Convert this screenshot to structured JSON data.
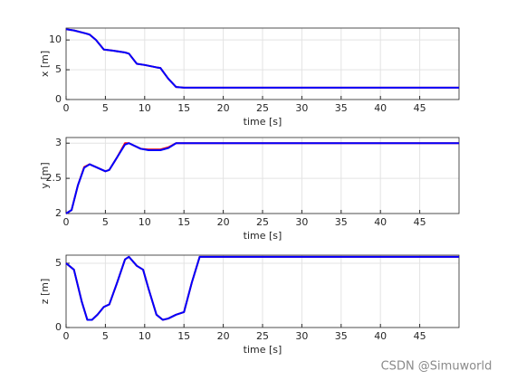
{
  "chart_data": [
    {
      "type": "line",
      "xlabel": "time [s]",
      "ylabel": "x [m]",
      "x": [
        0,
        1,
        2.5,
        3,
        3.8,
        4.8,
        6,
        7.5,
        8,
        9,
        10,
        11.5,
        12,
        13,
        14,
        15,
        50
      ],
      "series": [
        {
          "color": "#ff0000",
          "values": [
            11.8,
            11.6,
            11.1,
            10.9,
            10.0,
            8.4,
            8.2,
            7.9,
            7.7,
            6.0,
            5.8,
            5.4,
            5.3,
            3.5,
            2.1,
            2.0,
            2.0
          ]
        },
        {
          "color": "#0000ff",
          "values": [
            11.8,
            11.6,
            11.1,
            10.9,
            10.0,
            8.4,
            8.2,
            7.9,
            7.7,
            6.0,
            5.8,
            5.4,
            5.3,
            3.5,
            2.1,
            2.0,
            2.0
          ]
        }
      ],
      "xlim": [
        0,
        50
      ],
      "xticks": [
        0,
        5,
        10,
        15,
        20,
        25,
        30,
        35,
        40,
        45
      ],
      "ylim": [
        0,
        12
      ],
      "yticks": [
        0,
        5,
        10
      ],
      "grid": true
    },
    {
      "type": "line",
      "xlabel": "time [s]",
      "ylabel": "y [m]",
      "x": [
        0,
        0.7,
        1.5,
        2.3,
        3,
        4,
        5,
        5.5,
        6.5,
        7.5,
        8,
        9.5,
        10.5,
        12,
        13,
        14,
        50
      ],
      "series": [
        {
          "color": "#ff0000",
          "values": [
            2.0,
            2.05,
            2.4,
            2.66,
            2.7,
            2.65,
            2.6,
            2.62,
            2.8,
            3.0,
            3.0,
            2.92,
            2.91,
            2.91,
            2.94,
            3.0,
            3.0
          ]
        },
        {
          "color": "#0000ff",
          "values": [
            2.0,
            2.05,
            2.4,
            2.65,
            2.7,
            2.65,
            2.6,
            2.62,
            2.8,
            2.98,
            3.0,
            2.92,
            2.9,
            2.9,
            2.93,
            3.0,
            3.0
          ]
        }
      ],
      "xlim": [
        0,
        50
      ],
      "xticks": [
        0,
        5,
        10,
        15,
        20,
        25,
        30,
        35,
        40,
        45
      ],
      "ylim": [
        2,
        3.08
      ],
      "yticks": [
        2,
        2.5,
        3
      ],
      "grid": true
    },
    {
      "type": "line",
      "xlabel": "time [s]",
      "ylabel": "z [m]",
      "x": [
        0,
        1,
        2,
        2.7,
        3.3,
        4,
        4.8,
        5.5,
        6.5,
        7.5,
        8,
        9,
        9.8,
        10.5,
        11.5,
        12.3,
        13,
        14,
        15,
        16,
        17,
        50
      ],
      "series": [
        {
          "color": "#ff0000",
          "values": [
            5.0,
            4.5,
            2.0,
            0.6,
            0.6,
            1.0,
            1.6,
            1.8,
            3.5,
            5.3,
            5.5,
            4.8,
            4.5,
            3.0,
            1.0,
            0.6,
            0.7,
            1.0,
            1.2,
            3.5,
            5.5,
            5.5
          ]
        },
        {
          "color": "#0000ff",
          "values": [
            5.0,
            4.5,
            2.0,
            0.6,
            0.6,
            1.0,
            1.6,
            1.8,
            3.5,
            5.3,
            5.5,
            4.8,
            4.5,
            3.0,
            1.0,
            0.6,
            0.7,
            1.0,
            1.2,
            3.5,
            5.5,
            5.5
          ]
        }
      ],
      "xlim": [
        0,
        50
      ],
      "xticks": [
        0,
        5,
        10,
        15,
        20,
        25,
        30,
        35,
        40,
        45
      ],
      "ylim": [
        0,
        5.63
      ],
      "yticks": [
        0,
        5
      ],
      "grid": true
    }
  ],
  "watermark": "CSDN @Simuworld"
}
